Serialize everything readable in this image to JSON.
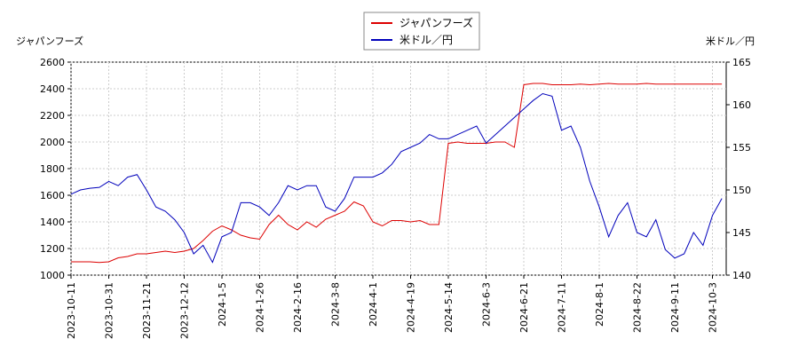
{
  "chart_data": {
    "type": "line",
    "categories": [
      "2023-10-11",
      null,
      null,
      null,
      "2023-10-31",
      null,
      null,
      null,
      "2023-11-21",
      null,
      null,
      null,
      "2023-12-12",
      null,
      null,
      null,
      "2024-1-5",
      null,
      null,
      null,
      "2024-1-26",
      null,
      null,
      null,
      "2024-2-16",
      null,
      null,
      null,
      "2024-3-8",
      null,
      null,
      null,
      "2024-4-1",
      null,
      null,
      null,
      "2024-4-19",
      null,
      null,
      null,
      "2024-5-14",
      null,
      null,
      null,
      "2024-6-3",
      null,
      null,
      null,
      "2024-6-21",
      null,
      null,
      null,
      "2024-7-11",
      null,
      null,
      null,
      "2024-8-1",
      null,
      null,
      null,
      "2024-8-22",
      null,
      null,
      null,
      "2024-9-11",
      null,
      null,
      null,
      "2024-10-3",
      null
    ],
    "series": [
      {
        "name": "ジャパンフーズ",
        "color": "#dd0000",
        "axis": "y",
        "values": [
          1100,
          1100,
          1100,
          1095,
          1100,
          1130,
          1140,
          1160,
          1160,
          1170,
          1180,
          1170,
          1180,
          1200,
          1260,
          1330,
          1370,
          1340,
          1300,
          1280,
          1270,
          1380,
          1450,
          1380,
          1340,
          1400,
          1360,
          1420,
          1450,
          1480,
          1550,
          1520,
          1400,
          1370,
          1410,
          1410,
          1400,
          1410,
          1380,
          1380,
          1990,
          2000,
          1990,
          1990,
          1990,
          2000,
          2000,
          1960,
          2430,
          2440,
          2440,
          2430,
          2430,
          2430,
          2435,
          2430,
          2435,
          2440,
          2435,
          2435,
          2435,
          2440,
          2435,
          2435,
          2435,
          2435,
          2435,
          2435,
          2435,
          2435
        ]
      },
      {
        "name": "米ドル／円",
        "color": "#0000bb",
        "axis": "y2",
        "values": [
          149.5,
          150,
          150.2,
          150.3,
          151,
          150.5,
          151.5,
          151.8,
          150,
          148,
          147.5,
          146.5,
          145,
          142.5,
          143.5,
          141.5,
          144.5,
          145,
          148.5,
          148.5,
          148,
          147,
          148.5,
          150.5,
          150,
          150.5,
          150.5,
          148,
          147.5,
          149,
          151.5,
          151.5,
          151.5,
          152,
          153,
          154.5,
          155,
          155.5,
          156.5,
          156,
          156,
          156.5,
          157,
          157.5,
          155.5,
          156.5,
          157.5,
          158.5,
          159.5,
          160.5,
          161.3,
          161,
          157,
          157.5,
          155,
          151,
          148,
          144.5,
          147,
          148.5,
          145,
          144.5,
          146.5,
          143,
          142,
          142.5,
          145,
          143.5,
          147,
          149
        ]
      }
    ],
    "y_label": "ジャパンフーズ",
    "y2_label": "米ドル／円",
    "ylim": [
      1000,
      2600
    ],
    "yticks": [
      1000,
      1200,
      1400,
      1600,
      1800,
      2000,
      2200,
      2400,
      2600
    ],
    "y2lim": [
      140,
      165
    ],
    "y2ticks": [
      140,
      145,
      150,
      155,
      160,
      165
    ],
    "grid": true
  }
}
